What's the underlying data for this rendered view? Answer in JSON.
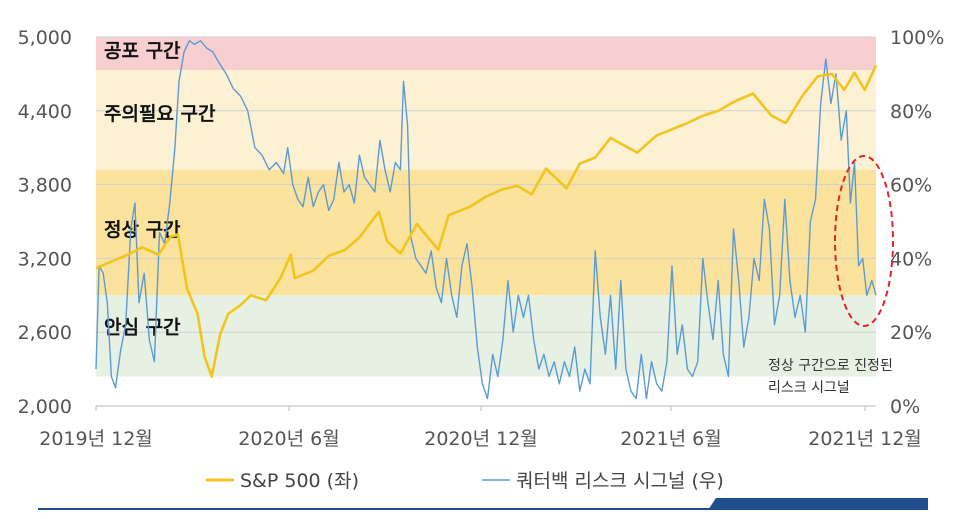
{
  "chart_data": {
    "type": "line",
    "title": "",
    "xlabel": "",
    "x_ticks": [
      "2019년 12월",
      "2020년 6월",
      "2020년 12월",
      "2021년 6월",
      "2021년 12월"
    ],
    "y_left": {
      "ticks": [
        "5,000",
        "4,400",
        "3,800",
        "3,200",
        "2,600",
        "2,000"
      ],
      "range": [
        2000,
        5000
      ]
    },
    "y_right": {
      "ticks": [
        "100%",
        "80%",
        "60%",
        "40%",
        "20%",
        "0%"
      ],
      "range": [
        0,
        100
      ]
    },
    "zones": [
      {
        "label": "공포 구간",
        "from": 91,
        "to": 100,
        "color": "#f7cfd1"
      },
      {
        "label": "주의필요 구간",
        "from": 64,
        "to": 91,
        "color": "#fdf1d3"
      },
      {
        "label": "정상 구간",
        "from": 30,
        "to": 64,
        "color": "#fbe39e"
      },
      {
        "label": "안심 구간",
        "from": 8,
        "to": 30,
        "color": "#e7f1e3"
      }
    ],
    "annotation": {
      "line1": "정상 구간으로 진정된",
      "line2": "리스크 시그널"
    },
    "grid": true,
    "legend_position": "bottom",
    "series": [
      {
        "name": "S&P 500 (좌)",
        "axis": "left",
        "color": "#f2c51d",
        "points": [
          [
            "2019-12-01",
            3120
          ],
          [
            "2019-12-15",
            3170
          ],
          [
            "2020-01-01",
            3230
          ],
          [
            "2020-01-15",
            3290
          ],
          [
            "2020-01-31",
            3230
          ],
          [
            "2020-02-12",
            3380
          ],
          [
            "2020-02-19",
            3390
          ],
          [
            "2020-02-28",
            2950
          ],
          [
            "2020-03-09",
            2750
          ],
          [
            "2020-03-16",
            2400
          ],
          [
            "2020-03-23",
            2240
          ],
          [
            "2020-03-31",
            2580
          ],
          [
            "2020-04-08",
            2750
          ],
          [
            "2020-04-20",
            2820
          ],
          [
            "2020-04-30",
            2900
          ],
          [
            "2020-05-15",
            2860
          ],
          [
            "2020-05-29",
            3040
          ],
          [
            "2020-06-08",
            3230
          ],
          [
            "2020-06-12",
            3040
          ],
          [
            "2020-06-30",
            3100
          ],
          [
            "2020-07-15",
            3220
          ],
          [
            "2020-07-31",
            3270
          ],
          [
            "2020-08-14",
            3370
          ],
          [
            "2020-09-02",
            3580
          ],
          [
            "2020-09-10",
            3340
          ],
          [
            "2020-09-23",
            3240
          ],
          [
            "2020-10-09",
            3480
          ],
          [
            "2020-10-30",
            3270
          ],
          [
            "2020-11-09",
            3550
          ],
          [
            "2020-11-30",
            3620
          ],
          [
            "2020-12-15",
            3700
          ],
          [
            "2020-12-31",
            3760
          ],
          [
            "2021-01-15",
            3790
          ],
          [
            "2021-01-29",
            3720
          ],
          [
            "2021-02-12",
            3930
          ],
          [
            "2021-03-04",
            3770
          ],
          [
            "2021-03-17",
            3970
          ],
          [
            "2021-04-01",
            4020
          ],
          [
            "2021-04-16",
            4180
          ],
          [
            "2021-05-12",
            4060
          ],
          [
            "2021-05-31",
            4200
          ],
          [
            "2021-06-15",
            4250
          ],
          [
            "2021-06-30",
            4300
          ],
          [
            "2021-07-15",
            4360
          ],
          [
            "2021-07-30",
            4400
          ],
          [
            "2021-08-16",
            4480
          ],
          [
            "2021-09-02",
            4540
          ],
          [
            "2021-09-20",
            4360
          ],
          [
            "2021-10-04",
            4300
          ],
          [
            "2021-10-20",
            4520
          ],
          [
            "2021-11-04",
            4680
          ],
          [
            "2021-11-18",
            4700
          ],
          [
            "2021-11-30",
            4570
          ],
          [
            "2021-12-10",
            4710
          ],
          [
            "2021-12-20",
            4570
          ],
          [
            "2021-12-31",
            4770
          ]
        ]
      },
      {
        "name": "쿼터백 리스크 시그널 (우)",
        "axis": "right",
        "color": "#5b9bd5",
        "points": [
          [
            "2019-12-01",
            10
          ],
          [
            "2019-12-04",
            38
          ],
          [
            "2019-12-08",
            36
          ],
          [
            "2019-12-12",
            28
          ],
          [
            "2019-12-16",
            8
          ],
          [
            "2019-12-20",
            5
          ],
          [
            "2019-12-25",
            15
          ],
          [
            "2019-12-30",
            22
          ],
          [
            "2020-01-04",
            48
          ],
          [
            "2020-01-08",
            55
          ],
          [
            "2020-01-12",
            28
          ],
          [
            "2020-01-17",
            36
          ],
          [
            "2020-01-22",
            18
          ],
          [
            "2020-01-27",
            12
          ],
          [
            "2020-02-01",
            47
          ],
          [
            "2020-02-06",
            44
          ],
          [
            "2020-02-11",
            55
          ],
          [
            "2020-02-16",
            70
          ],
          [
            "2020-02-20",
            88
          ],
          [
            "2020-02-25",
            96
          ],
          [
            "2020-03-01",
            99
          ],
          [
            "2020-03-06",
            98
          ],
          [
            "2020-03-12",
            99
          ],
          [
            "2020-03-18",
            97
          ],
          [
            "2020-03-24",
            96
          ],
          [
            "2020-03-30",
            93
          ],
          [
            "2020-04-06",
            90
          ],
          [
            "2020-04-13",
            86
          ],
          [
            "2020-04-20",
            84
          ],
          [
            "2020-04-27",
            80
          ],
          [
            "2020-05-04",
            70
          ],
          [
            "2020-05-11",
            68
          ],
          [
            "2020-05-18",
            64
          ],
          [
            "2020-05-25",
            66
          ],
          [
            "2020-06-01",
            63
          ],
          [
            "2020-06-05",
            70
          ],
          [
            "2020-06-10",
            60
          ],
          [
            "2020-06-15",
            56
          ],
          [
            "2020-06-20",
            54
          ],
          [
            "2020-06-25",
            62
          ],
          [
            "2020-06-30",
            54
          ],
          [
            "2020-07-05",
            58
          ],
          [
            "2020-07-10",
            60
          ],
          [
            "2020-07-15",
            53
          ],
          [
            "2020-07-20",
            56
          ],
          [
            "2020-07-25",
            66
          ],
          [
            "2020-07-30",
            58
          ],
          [
            "2020-08-04",
            60
          ],
          [
            "2020-08-09",
            55
          ],
          [
            "2020-08-14",
            68
          ],
          [
            "2020-08-19",
            62
          ],
          [
            "2020-08-24",
            60
          ],
          [
            "2020-08-29",
            58
          ],
          [
            "2020-09-03",
            72
          ],
          [
            "2020-09-08",
            64
          ],
          [
            "2020-09-13",
            58
          ],
          [
            "2020-09-18",
            66
          ],
          [
            "2020-09-23",
            64
          ],
          [
            "2020-09-26",
            88
          ],
          [
            "2020-09-30",
            76
          ],
          [
            "2020-10-03",
            46
          ],
          [
            "2020-10-08",
            40
          ],
          [
            "2020-10-13",
            38
          ],
          [
            "2020-10-18",
            36
          ],
          [
            "2020-10-23",
            42
          ],
          [
            "2020-10-28",
            32
          ],
          [
            "2020-11-02",
            28
          ],
          [
            "2020-11-07",
            40
          ],
          [
            "2020-11-12",
            30
          ],
          [
            "2020-11-17",
            24
          ],
          [
            "2020-11-22",
            38
          ],
          [
            "2020-11-27",
            44
          ],
          [
            "2020-12-02",
            32
          ],
          [
            "2020-12-07",
            16
          ],
          [
            "2020-12-12",
            6
          ],
          [
            "2020-12-17",
            2
          ],
          [
            "2020-12-22",
            14
          ],
          [
            "2020-12-27",
            8
          ],
          [
            "2021-01-01",
            18
          ],
          [
            "2021-01-06",
            34
          ],
          [
            "2021-01-11",
            20
          ],
          [
            "2021-01-16",
            30
          ],
          [
            "2021-01-21",
            24
          ],
          [
            "2021-01-26",
            30
          ],
          [
            "2021-01-31",
            18
          ],
          [
            "2021-02-05",
            10
          ],
          [
            "2021-02-10",
            14
          ],
          [
            "2021-02-15",
            8
          ],
          [
            "2021-02-20",
            12
          ],
          [
            "2021-02-25",
            6
          ],
          [
            "2021-03-02",
            12
          ],
          [
            "2021-03-07",
            8
          ],
          [
            "2021-03-12",
            16
          ],
          [
            "2021-03-17",
            4
          ],
          [
            "2021-03-22",
            10
          ],
          [
            "2021-03-27",
            6
          ],
          [
            "2021-04-01",
            42
          ],
          [
            "2021-04-06",
            24
          ],
          [
            "2021-04-11",
            14
          ],
          [
            "2021-04-16",
            30
          ],
          [
            "2021-04-21",
            10
          ],
          [
            "2021-04-26",
            34
          ],
          [
            "2021-05-01",
            10
          ],
          [
            "2021-05-06",
            4
          ],
          [
            "2021-05-11",
            2
          ],
          [
            "2021-05-16",
            14
          ],
          [
            "2021-05-21",
            2
          ],
          [
            "2021-05-26",
            12
          ],
          [
            "2021-05-31",
            6
          ],
          [
            "2021-06-05",
            4
          ],
          [
            "2021-06-10",
            12
          ],
          [
            "2021-06-15",
            38
          ],
          [
            "2021-06-20",
            14
          ],
          [
            "2021-06-25",
            22
          ],
          [
            "2021-06-30",
            10
          ],
          [
            "2021-07-05",
            8
          ],
          [
            "2021-07-10",
            12
          ],
          [
            "2021-07-15",
            40
          ],
          [
            "2021-07-20",
            28
          ],
          [
            "2021-07-25",
            18
          ],
          [
            "2021-07-30",
            34
          ],
          [
            "2021-08-04",
            14
          ],
          [
            "2021-08-09",
            8
          ],
          [
            "2021-08-14",
            48
          ],
          [
            "2021-08-19",
            34
          ],
          [
            "2021-08-24",
            16
          ],
          [
            "2021-08-29",
            24
          ],
          [
            "2021-09-03",
            40
          ],
          [
            "2021-09-08",
            34
          ],
          [
            "2021-09-13",
            56
          ],
          [
            "2021-09-18",
            48
          ],
          [
            "2021-09-23",
            22
          ],
          [
            "2021-09-28",
            30
          ],
          [
            "2021-10-03",
            56
          ],
          [
            "2021-10-08",
            34
          ],
          [
            "2021-10-13",
            24
          ],
          [
            "2021-10-18",
            30
          ],
          [
            "2021-10-23",
            20
          ],
          [
            "2021-10-28",
            50
          ],
          [
            "2021-11-02",
            56
          ],
          [
            "2021-11-07",
            82
          ],
          [
            "2021-11-12",
            94
          ],
          [
            "2021-11-17",
            82
          ],
          [
            "2021-11-22",
            90
          ],
          [
            "2021-11-27",
            72
          ],
          [
            "2021-12-02",
            80
          ],
          [
            "2021-12-06",
            55
          ],
          [
            "2021-12-10",
            66
          ],
          [
            "2021-12-14",
            38
          ],
          [
            "2021-12-18",
            40
          ],
          [
            "2021-12-22",
            30
          ],
          [
            "2021-12-27",
            34
          ],
          [
            "2021-12-31",
            30
          ]
        ]
      }
    ]
  }
}
